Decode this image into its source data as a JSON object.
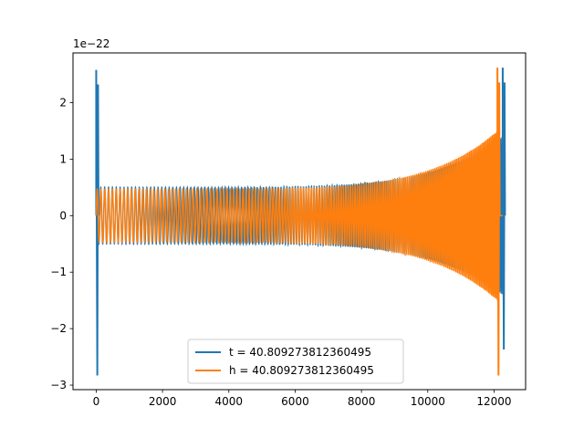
{
  "chart_data": {
    "type": "line",
    "title": "",
    "xlabel": "",
    "ylabel": "",
    "y_offset_label": "1e−22",
    "xlim": [
      -700,
      12950
    ],
    "ylim": [
      -3.08,
      2.88
    ],
    "x_ticks": [
      0,
      2000,
      4000,
      6000,
      8000,
      10000,
      12000
    ],
    "x_tick_labels": [
      "0",
      "2000",
      "4000",
      "6000",
      "8000",
      "10000",
      "12000"
    ],
    "y_ticks": [
      -3,
      -2,
      -1,
      0,
      1,
      2
    ],
    "y_tick_labels": [
      "−3",
      "−2",
      "−1",
      "0",
      "1",
      "2"
    ],
    "grid": false,
    "legend_position": "lower center",
    "series": [
      {
        "name": "t = 40.809273812360495",
        "color": "#1f77b4",
        "description": "chirp waveform: spike near x=0 (range -2.83 to 2.58), oscillation amplitude ~0.5 growing to ~1.4, ending spike near x=12260 (range -2.37 to 2.62)",
        "start_spike": {
          "x": 0,
          "min": -2.83,
          "max": 2.58
        },
        "chirp": {
          "x_start": 0,
          "x_end": 12260,
          "amp_start": 0.5,
          "amp_end": 1.4
        },
        "end_spike": {
          "x": 12260,
          "min": -2.37,
          "max": 2.62
        }
      },
      {
        "name": "h = 40.809273812360495",
        "color": "#ff7f0e",
        "description": "chirp waveform starting at x=0, amplitude ~0.47 growing to ~1.5 near x=12100, sharp spike at x~12100 (range -2.83 to 2.62), flat at 0 after",
        "chirp": {
          "x_start": 0,
          "x_end": 12100,
          "amp_start": 0.47,
          "amp_end": 1.5
        },
        "end_spike": {
          "x": 12100,
          "min": -2.83,
          "max": 2.62
        },
        "flat_after": {
          "x_start": 12100,
          "x_end": 12260,
          "value": 0
        }
      }
    ]
  }
}
